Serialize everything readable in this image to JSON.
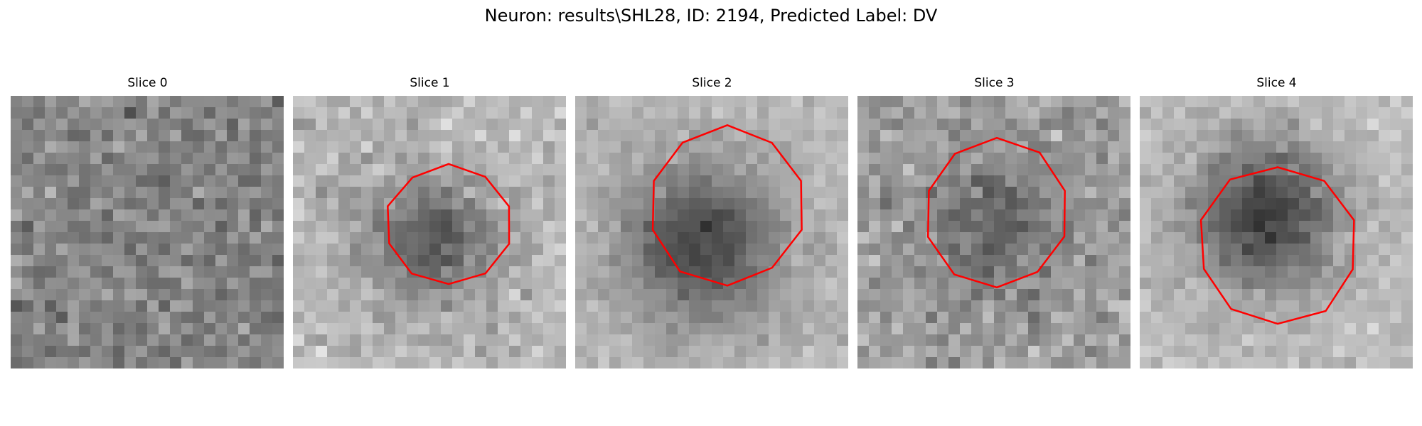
{
  "figure": {
    "title": "Neuron: results\\SHL28, ID: 2194, Predicted Label: DV"
  },
  "colors": {
    "contour": "#ff0000",
    "background": "#ffffff"
  },
  "image": {
    "colormap": "gray"
  },
  "panels": [
    {
      "title": "Slice 0",
      "has_contour": false
    },
    {
      "title": "Slice 1",
      "has_contour": true
    },
    {
      "title": "Slice 2",
      "has_contour": true
    },
    {
      "title": "Slice 3",
      "has_contour": true
    },
    {
      "title": "Slice 4",
      "has_contour": true
    }
  ]
}
